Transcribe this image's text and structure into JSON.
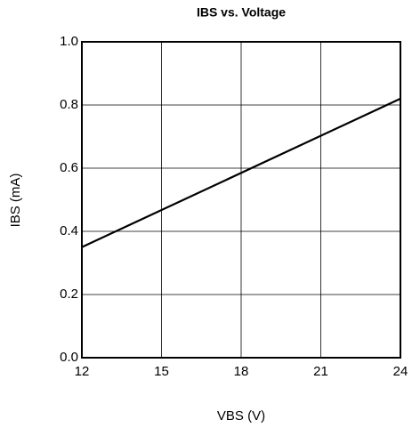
{
  "chart_data": {
    "type": "line",
    "title": "IBS vs. Voltage",
    "x_label": "VBS (V)",
    "y_label": "IBS (mA)",
    "x": [
      12,
      24
    ],
    "series": [
      {
        "name": "IBS",
        "color": "#000000",
        "values": [
          0.35,
          0.82
        ]
      }
    ],
    "xlim": [
      12,
      24
    ],
    "xticks": [
      12,
      15,
      18,
      21,
      24
    ],
    "ylim": [
      0,
      1
    ],
    "yticks": [
      {
        "value": 0,
        "label": "0.0"
      },
      0.2,
      0.4,
      0.6,
      0.8,
      {
        "value": 1,
        "label": "1.0"
      }
    ],
    "grid": true
  }
}
